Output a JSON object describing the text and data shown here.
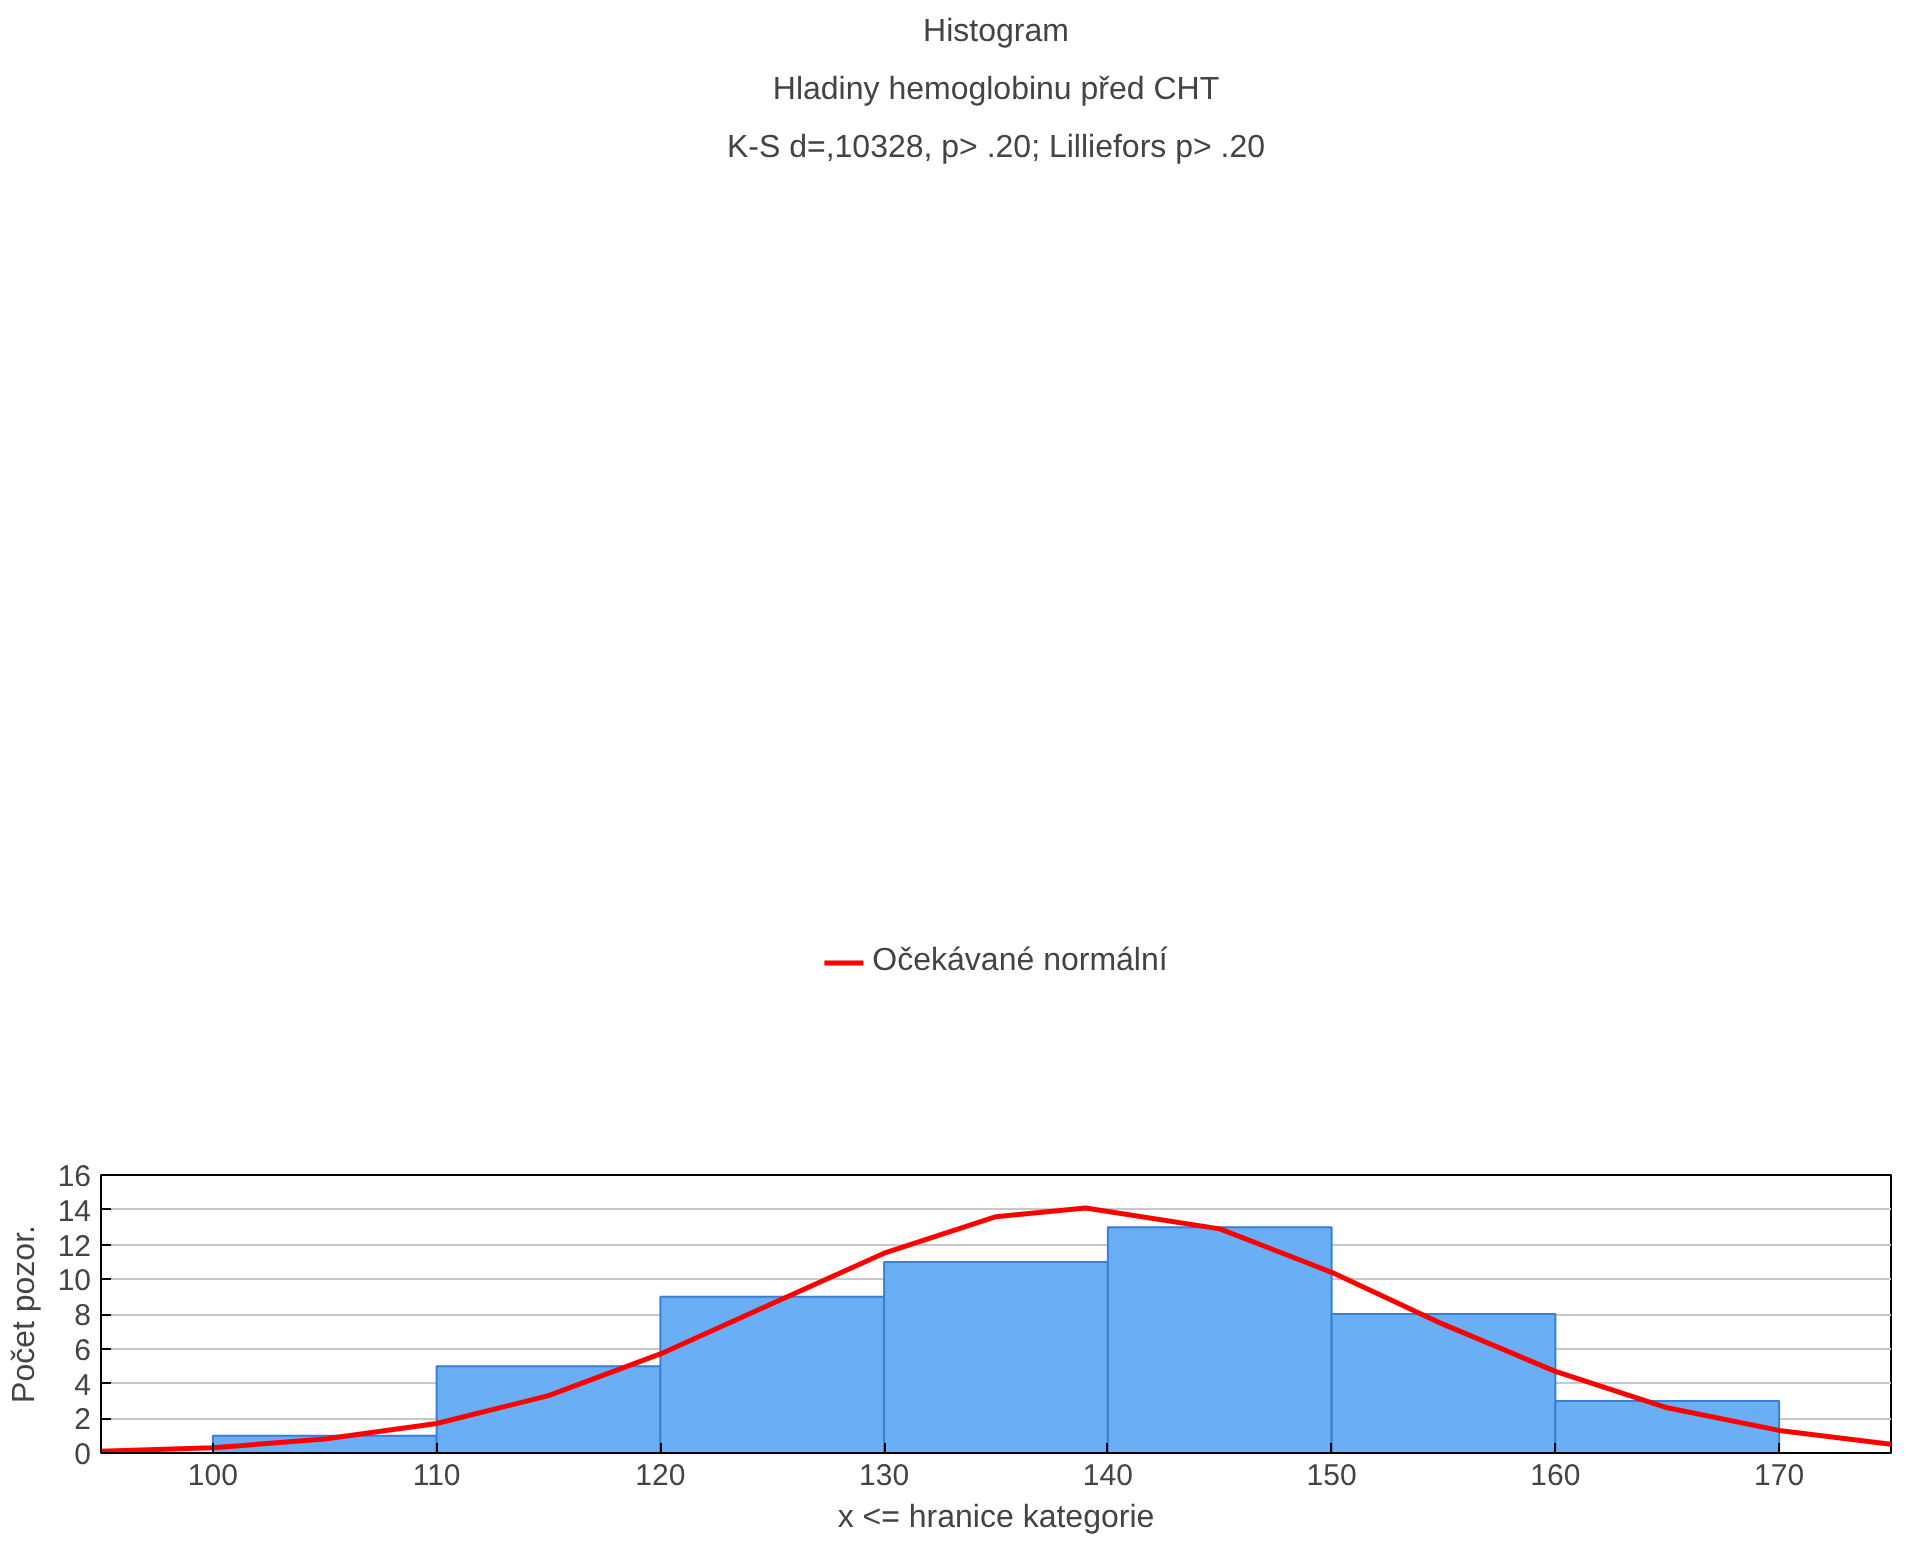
{
  "chart_data": {
    "type": "histogram",
    "title": "Histogram",
    "subtitle": "Hladiny hemoglobinu před CHT",
    "annotations": [
      "K-S d=,10328, p> .20; Lilliefors p> .20"
    ],
    "xlabel": "x <= hranice kategorie",
    "ylabel": "Počet pozor.",
    "bins": [
      100,
      110,
      120,
      130,
      140,
      150,
      160,
      170
    ],
    "values": [
      1,
      5,
      9,
      11,
      13,
      8,
      3
    ],
    "color": "#6aaef5",
    "series": [
      {
        "type": "line",
        "name": "Očekávané normální",
        "color": "#ff0000",
        "x": [
          95,
          100,
          105,
          110,
          115,
          120,
          125,
          130,
          135,
          139,
          145,
          150,
          155,
          160,
          165,
          170,
          175
        ],
        "values": [
          0.1,
          0.3,
          0.8,
          1.7,
          3.3,
          5.7,
          8.6,
          11.5,
          13.6,
          14.1,
          12.9,
          10.4,
          7.4,
          4.7,
          2.6,
          1.3,
          0.5
        ]
      }
    ],
    "xlim": [
      95,
      175
    ],
    "xticks": [
      100,
      110,
      120,
      130,
      140,
      150,
      160,
      170
    ],
    "ylim": [
      0,
      16
    ],
    "yticks": [
      0,
      2,
      4,
      6,
      8,
      10,
      12,
      14,
      16
    ],
    "grid": "y",
    "legend": "top"
  }
}
